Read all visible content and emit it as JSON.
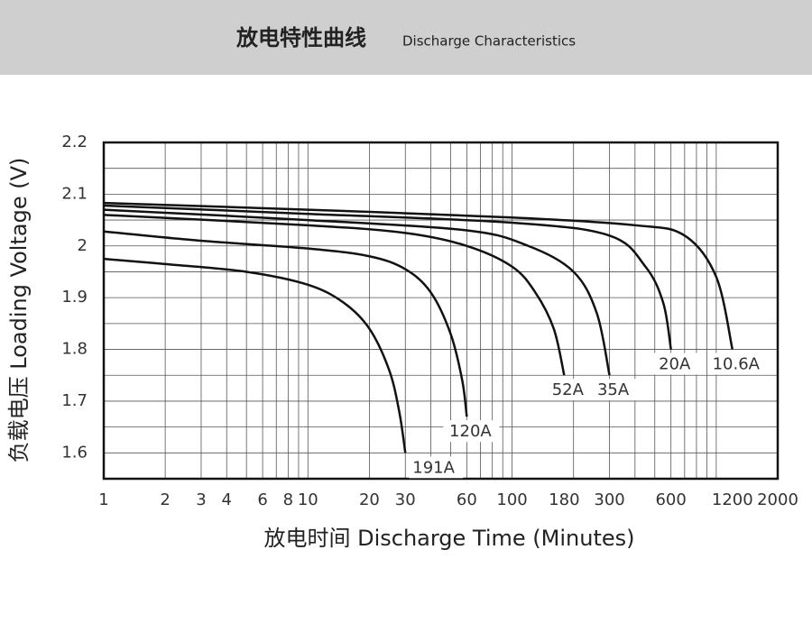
{
  "chart_data": {
    "type": "line",
    "title": "放电特性曲线",
    "subtitle": "Discharge Characteristics",
    "x_label": "放电时间 Discharge Time (Minutes)",
    "y_label": "负载电压 Loading Voltage (V)",
    "xscale": "log",
    "xlim": [
      1,
      2000
    ],
    "ylim": [
      1.55,
      2.2
    ],
    "xticks": [
      1,
      2,
      3,
      4,
      6,
      8,
      10,
      20,
      30,
      60,
      100,
      180,
      300,
      600,
      1200,
      2000
    ],
    "yticks": [
      1.6,
      1.7,
      1.8,
      1.9,
      2.0,
      2.1,
      2.2
    ],
    "xgrid": [
      1,
      2,
      3,
      4,
      5,
      6,
      7,
      8,
      9,
      10,
      20,
      30,
      40,
      50,
      60,
      70,
      80,
      90,
      100,
      200,
      300,
      400,
      500,
      600,
      700,
      800,
      900,
      1000,
      2000
    ],
    "ygrid": [
      1.6,
      1.65,
      1.7,
      1.75,
      1.8,
      1.85,
      1.9,
      1.95,
      2.0,
      2.05,
      2.1,
      2.15,
      2.2
    ],
    "grid": true,
    "color": "#111111",
    "series": [
      {
        "name": "191A",
        "x": [
          1,
          2,
          5,
          10,
          15,
          20,
          25,
          28,
          30
        ],
        "values": [
          1.975,
          1.965,
          1.95,
          1.925,
          1.89,
          1.84,
          1.76,
          1.68,
          1.6
        ]
      },
      {
        "name": "120A",
        "x": [
          1,
          3,
          10,
          20,
          30,
          40,
          50,
          57,
          60
        ],
        "values": [
          2.028,
          2.01,
          1.995,
          1.98,
          1.955,
          1.91,
          1.83,
          1.74,
          1.67
        ]
      },
      {
        "name": "52A",
        "x": [
          1,
          10,
          30,
          60,
          100,
          130,
          160,
          180
        ],
        "values": [
          2.06,
          2.04,
          2.025,
          2.0,
          1.96,
          1.91,
          1.84,
          1.75
        ]
      },
      {
        "name": "35A",
        "x": [
          1,
          10,
          60,
          120,
          200,
          260,
          300
        ],
        "values": [
          2.07,
          2.05,
          2.03,
          2.0,
          1.95,
          1.87,
          1.75
        ]
      },
      {
        "name": "20A",
        "x": [
          1,
          10,
          100,
          300,
          450,
          550,
          600
        ],
        "values": [
          2.078,
          2.062,
          2.045,
          2.02,
          1.96,
          1.89,
          1.8
        ]
      },
      {
        "name": "10.6A",
        "x": [
          1,
          10,
          100,
          400,
          700,
          1000,
          1200
        ],
        "values": [
          2.083,
          2.07,
          2.055,
          2.04,
          2.02,
          1.94,
          1.8
        ]
      }
    ]
  }
}
